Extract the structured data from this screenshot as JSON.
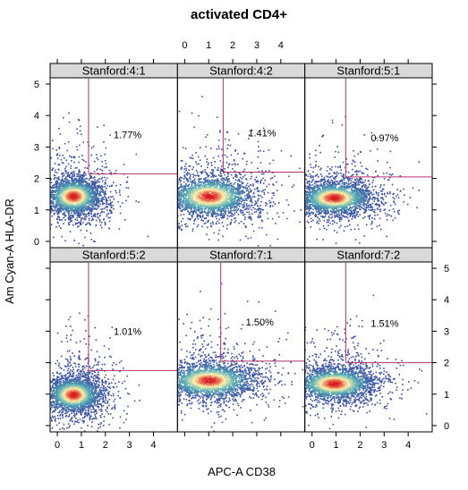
{
  "chart_data": {
    "type": "scatter",
    "title": "activated CD4+",
    "xlabel": "APC-A CD38",
    "ylabel": "Am Cyan-A HLA-DR",
    "xlim": [
      -0.3,
      5.0
    ],
    "ylim": [
      -0.2,
      5.2
    ],
    "x_ticks": [
      "0",
      "1",
      "2",
      "3",
      "4"
    ],
    "y_ticks": [
      "0",
      "1",
      "2",
      "3",
      "4",
      "5"
    ],
    "layout": {
      "columns": 3,
      "rows": 2
    },
    "colors": {
      "strip": "#d9d9d9",
      "gate": "#b0306e",
      "density_low": "#3b4fa0",
      "density_mid": "#fff1a8",
      "density_high": "#d7191c"
    },
    "panels": [
      {
        "strip": "Stanford:4:1",
        "percent": "1.77%",
        "gate": {
          "x": 1.3,
          "y": 2.15
        },
        "center": [
          0.65,
          1.45
        ],
        "spread": [
          0.55,
          0.28
        ]
      },
      {
        "strip": "Stanford:4:2",
        "percent": "1.41%",
        "gate": {
          "x": 1.6,
          "y": 2.2
        },
        "center": [
          1.0,
          1.45
        ],
        "spread": [
          0.85,
          0.3
        ]
      },
      {
        "strip": "Stanford:5:1",
        "percent": "0.97%",
        "gate": {
          "x": 1.4,
          "y": 2.05
        },
        "center": [
          0.9,
          1.4
        ],
        "spread": [
          0.75,
          0.25
        ]
      },
      {
        "strip": "Stanford:5:2",
        "percent": "1.01%",
        "gate": {
          "x": 1.3,
          "y": 1.75
        },
        "center": [
          0.65,
          1.0
        ],
        "spread": [
          0.55,
          0.27
        ]
      },
      {
        "strip": "Stanford:7:1",
        "percent": "1.50%",
        "gate": {
          "x": 1.5,
          "y": 2.05
        },
        "center": [
          1.0,
          1.45
        ],
        "spread": [
          0.9,
          0.27
        ]
      },
      {
        "strip": "Stanford:7:2",
        "percent": "1.51%",
        "gate": {
          "x": 1.4,
          "y": 2.0
        },
        "center": [
          0.9,
          1.35
        ],
        "spread": [
          0.8,
          0.25
        ]
      }
    ]
  }
}
